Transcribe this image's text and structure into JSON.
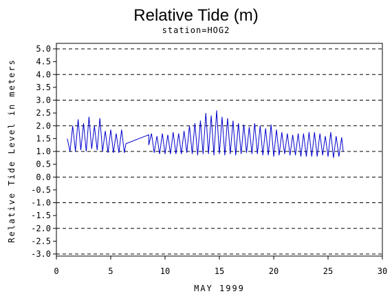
{
  "chart_data": {
    "type": "line",
    "title": "Relative Tide (m)",
    "subtitle": "station=HOG2",
    "xlabel": "MAY 1999",
    "ylabel": "Relative Tide Level in meters",
    "xlim": [
      0,
      30
    ],
    "ylim": [
      -3.0,
      5.0
    ],
    "x_ticks": [
      "0",
      "5",
      "10",
      "15",
      "20",
      "25",
      "30"
    ],
    "y_ticks": [
      "5.0",
      "4.5",
      "4.0",
      "3.5",
      "3.0",
      "2.5",
      "2.0",
      "1.5",
      "1.0",
      "0.5",
      "0.0",
      "-0.5",
      "-1.0",
      "-1.5",
      "-2.0",
      "-2.5",
      "-3.0"
    ],
    "grid": "horizontal dashed at integer meters",
    "series": [
      {
        "color": "#0000cc",
        "x": [
          1.0,
          1.25,
          1.5,
          1.75,
          2.0,
          2.25,
          2.5,
          2.75,
          3.0,
          3.25,
          3.5,
          3.75,
          4.0,
          4.25,
          4.5,
          4.75,
          5.0,
          5.25,
          5.5,
          5.75,
          6.0,
          6.25,
          6.4,
          6.4,
          8.5,
          8.5,
          8.75,
          9.0,
          9.25,
          9.5,
          9.75,
          10.0,
          10.25,
          10.5,
          10.75,
          11.0,
          11.25,
          11.5,
          11.75,
          12.0,
          12.25,
          12.5,
          12.75,
          13.0,
          13.25,
          13.5,
          13.75,
          14.0,
          14.25,
          14.5,
          14.75,
          15.0,
          15.25,
          15.5,
          15.75,
          16.0,
          16.25,
          16.5,
          16.75,
          17.0,
          17.25,
          17.5,
          17.75,
          18.0,
          18.25,
          18.5,
          18.75,
          19.0,
          19.25,
          19.5,
          19.75,
          20.0,
          20.25,
          20.5,
          20.75,
          21.0,
          21.25,
          21.5,
          21.75,
          22.0,
          22.25,
          22.5,
          22.75,
          23.0,
          23.25,
          23.5,
          23.75,
          24.0,
          24.25,
          24.5,
          24.75,
          25.0,
          25.25,
          25.5,
          25.75,
          26.0,
          26.25,
          26.4
        ],
        "y": [
          1.5,
          1.0,
          2.0,
          1.0,
          2.25,
          1.05,
          2.1,
          1.0,
          2.35,
          1.1,
          2.0,
          1.05,
          2.3,
          1.0,
          1.8,
          0.95,
          1.85,
          0.95,
          1.7,
          0.95,
          1.85,
          0.95,
          1.3,
          1.3,
          1.65,
          1.25,
          1.7,
          0.95,
          1.6,
          0.9,
          1.7,
          0.9,
          1.65,
          0.9,
          1.75,
          0.9,
          1.7,
          0.9,
          1.8,
          0.95,
          2.0,
          0.9,
          2.1,
          0.85,
          2.2,
          0.9,
          2.5,
          0.9,
          2.4,
          0.85,
          2.6,
          0.9,
          2.35,
          0.85,
          2.3,
          0.9,
          2.2,
          0.85,
          2.1,
          0.9,
          2.05,
          0.95,
          1.95,
          0.9,
          2.1,
          0.9,
          2.0,
          0.85,
          1.9,
          0.85,
          2.05,
          0.8,
          1.85,
          0.85,
          1.75,
          0.9,
          1.7,
          0.85,
          1.65,
          0.85,
          1.7,
          0.8,
          1.7,
          0.8,
          1.75,
          0.8,
          1.75,
          0.8,
          1.7,
          0.85,
          1.6,
          0.8,
          1.75,
          0.75,
          1.6,
          0.8,
          1.55,
          1.0
        ]
      }
    ]
  }
}
